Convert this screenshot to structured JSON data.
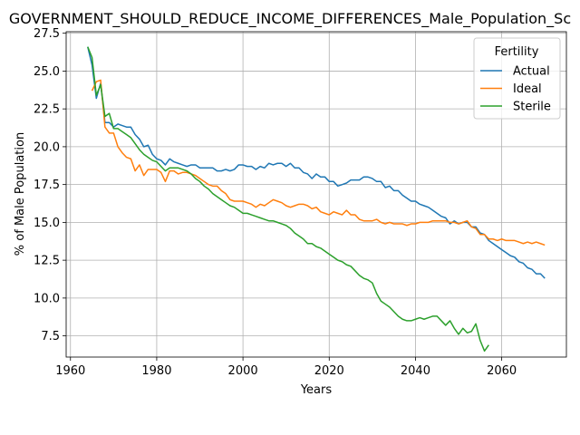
{
  "chart_data": {
    "type": "line",
    "title": "GOVERNMENT_SHOULD_REDUCE_INCOME_DIFFERENCES_Male_Population_Sc",
    "xlabel": "Years",
    "ylabel": "% of Male Population",
    "xlim": [
      1959,
      2075
    ],
    "ylim": [
      6.1,
      27.6
    ],
    "xticks": [
      1960,
      1980,
      2000,
      2020,
      2040,
      2060
    ],
    "yticks": [
      7.5,
      10.0,
      12.5,
      15.0,
      17.5,
      20.0,
      22.5,
      25.0,
      27.5
    ],
    "ytick_labels": [
      "7.5",
      "10.0",
      "12.5",
      "15.0",
      "17.5",
      "20.0",
      "22.5",
      "25.0",
      "27.5"
    ],
    "grid": true,
    "legend_title": "Fertility",
    "legend_position": "top-right",
    "series": [
      {
        "name": "Actual",
        "color": "#1f77b4",
        "points": [
          [
            1964,
            26.6
          ],
          [
            1965,
            25.4
          ],
          [
            1966,
            23.2
          ],
          [
            1967,
            24.2
          ],
          [
            1968,
            21.6
          ],
          [
            1969,
            21.6
          ],
          [
            1970,
            21.3
          ],
          [
            1971,
            21.5
          ],
          [
            1972,
            21.4
          ],
          [
            1973,
            21.3
          ],
          [
            1974,
            21.3
          ],
          [
            1975,
            20.8
          ],
          [
            1976,
            20.5
          ],
          [
            1977,
            20.0
          ],
          [
            1978,
            20.1
          ],
          [
            1979,
            19.5
          ],
          [
            1980,
            19.2
          ],
          [
            1981,
            19.1
          ],
          [
            1982,
            18.8
          ],
          [
            1983,
            19.2
          ],
          [
            1984,
            19.0
          ],
          [
            1985,
            18.9
          ],
          [
            1986,
            18.8
          ],
          [
            1987,
            18.7
          ],
          [
            1988,
            18.8
          ],
          [
            1989,
            18.8
          ],
          [
            1990,
            18.6
          ],
          [
            1991,
            18.6
          ],
          [
            1992,
            18.6
          ],
          [
            1993,
            18.6
          ],
          [
            1994,
            18.4
          ],
          [
            1995,
            18.4
          ],
          [
            1996,
            18.5
          ],
          [
            1997,
            18.4
          ],
          [
            1998,
            18.5
          ],
          [
            1999,
            18.8
          ],
          [
            2000,
            18.8
          ],
          [
            2001,
            18.7
          ],
          [
            2002,
            18.7
          ],
          [
            2003,
            18.5
          ],
          [
            2004,
            18.7
          ],
          [
            2005,
            18.6
          ],
          [
            2006,
            18.9
          ],
          [
            2007,
            18.8
          ],
          [
            2008,
            18.9
          ],
          [
            2009,
            18.9
          ],
          [
            2010,
            18.7
          ],
          [
            2011,
            18.9
          ],
          [
            2012,
            18.6
          ],
          [
            2013,
            18.6
          ],
          [
            2014,
            18.3
          ],
          [
            2015,
            18.2
          ],
          [
            2016,
            17.9
          ],
          [
            2017,
            18.2
          ],
          [
            2018,
            18.0
          ],
          [
            2019,
            18.0
          ],
          [
            2020,
            17.7
          ],
          [
            2021,
            17.7
          ],
          [
            2022,
            17.4
          ],
          [
            2023,
            17.5
          ],
          [
            2024,
            17.6
          ],
          [
            2025,
            17.8
          ],
          [
            2026,
            17.8
          ],
          [
            2027,
            17.8
          ],
          [
            2028,
            18.0
          ],
          [
            2029,
            18.0
          ],
          [
            2030,
            17.9
          ],
          [
            2031,
            17.7
          ],
          [
            2032,
            17.7
          ],
          [
            2033,
            17.3
          ],
          [
            2034,
            17.4
          ],
          [
            2035,
            17.1
          ],
          [
            2036,
            17.1
          ],
          [
            2037,
            16.8
          ],
          [
            2038,
            16.6
          ],
          [
            2039,
            16.4
          ],
          [
            2040,
            16.4
          ],
          [
            2041,
            16.2
          ],
          [
            2042,
            16.1
          ],
          [
            2043,
            16.0
          ],
          [
            2044,
            15.8
          ],
          [
            2045,
            15.6
          ],
          [
            2046,
            15.4
          ],
          [
            2047,
            15.3
          ],
          [
            2048,
            14.9
          ],
          [
            2049,
            15.1
          ],
          [
            2050,
            14.9
          ],
          [
            2051,
            15.0
          ],
          [
            2052,
            15.0
          ],
          [
            2053,
            14.7
          ],
          [
            2054,
            14.7
          ],
          [
            2055,
            14.3
          ],
          [
            2056,
            14.2
          ],
          [
            2057,
            13.8
          ],
          [
            2058,
            13.6
          ],
          [
            2059,
            13.4
          ],
          [
            2060,
            13.2
          ],
          [
            2061,
            13.0
          ],
          [
            2062,
            12.8
          ],
          [
            2063,
            12.7
          ],
          [
            2064,
            12.4
          ],
          [
            2065,
            12.3
          ],
          [
            2066,
            12.0
          ],
          [
            2067,
            11.9
          ],
          [
            2068,
            11.6
          ],
          [
            2069,
            11.6
          ],
          [
            2070,
            11.3
          ]
        ]
      },
      {
        "name": "Ideal",
        "color": "#ff7f0e",
        "points": [
          [
            1965,
            23.7
          ],
          [
            1966,
            24.3
          ],
          [
            1967,
            24.4
          ],
          [
            1968,
            21.3
          ],
          [
            1969,
            20.9
          ],
          [
            1970,
            20.9
          ],
          [
            1971,
            20.0
          ],
          [
            1972,
            19.6
          ],
          [
            1973,
            19.3
          ],
          [
            1974,
            19.2
          ],
          [
            1975,
            18.4
          ],
          [
            1976,
            18.8
          ],
          [
            1977,
            18.1
          ],
          [
            1978,
            18.5
          ],
          [
            1979,
            18.5
          ],
          [
            1980,
            18.5
          ],
          [
            1981,
            18.3
          ],
          [
            1982,
            17.7
          ],
          [
            1983,
            18.4
          ],
          [
            1984,
            18.4
          ],
          [
            1985,
            18.2
          ],
          [
            1986,
            18.3
          ],
          [
            1987,
            18.3
          ],
          [
            1988,
            18.2
          ],
          [
            1989,
            18.1
          ],
          [
            1990,
            17.9
          ],
          [
            1991,
            17.7
          ],
          [
            1992,
            17.5
          ],
          [
            1993,
            17.4
          ],
          [
            1994,
            17.4
          ],
          [
            1995,
            17.1
          ],
          [
            1996,
            16.9
          ],
          [
            1997,
            16.5
          ],
          [
            1998,
            16.4
          ],
          [
            1999,
            16.4
          ],
          [
            2000,
            16.4
          ],
          [
            2001,
            16.3
          ],
          [
            2002,
            16.2
          ],
          [
            2003,
            16.0
          ],
          [
            2004,
            16.2
          ],
          [
            2005,
            16.1
          ],
          [
            2006,
            16.3
          ],
          [
            2007,
            16.5
          ],
          [
            2008,
            16.4
          ],
          [
            2009,
            16.3
          ],
          [
            2010,
            16.1
          ],
          [
            2011,
            16.0
          ],
          [
            2012,
            16.1
          ],
          [
            2013,
            16.2
          ],
          [
            2014,
            16.2
          ],
          [
            2015,
            16.1
          ],
          [
            2016,
            15.9
          ],
          [
            2017,
            16.0
          ],
          [
            2018,
            15.7
          ],
          [
            2019,
            15.6
          ],
          [
            2020,
            15.5
          ],
          [
            2021,
            15.7
          ],
          [
            2022,
            15.6
          ],
          [
            2023,
            15.5
          ],
          [
            2024,
            15.8
          ],
          [
            2025,
            15.5
          ],
          [
            2026,
            15.5
          ],
          [
            2027,
            15.2
          ],
          [
            2028,
            15.1
          ],
          [
            2029,
            15.1
          ],
          [
            2030,
            15.1
          ],
          [
            2031,
            15.2
          ],
          [
            2032,
            15.0
          ],
          [
            2033,
            14.9
          ],
          [
            2034,
            15.0
          ],
          [
            2035,
            14.9
          ],
          [
            2036,
            14.9
          ],
          [
            2037,
            14.9
          ],
          [
            2038,
            14.8
          ],
          [
            2039,
            14.9
          ],
          [
            2040,
            14.9
          ],
          [
            2041,
            15.0
          ],
          [
            2042,
            15.0
          ],
          [
            2043,
            15.0
          ],
          [
            2044,
            15.1
          ],
          [
            2045,
            15.1
          ],
          [
            2046,
            15.1
          ],
          [
            2047,
            15.1
          ],
          [
            2048,
            15.0
          ],
          [
            2049,
            15.0
          ],
          [
            2050,
            14.9
          ],
          [
            2051,
            15.0
          ],
          [
            2052,
            15.1
          ],
          [
            2053,
            14.7
          ],
          [
            2054,
            14.6
          ],
          [
            2055,
            14.2
          ],
          [
            2056,
            14.2
          ],
          [
            2057,
            13.9
          ],
          [
            2058,
            13.9
          ],
          [
            2059,
            13.8
          ],
          [
            2060,
            13.9
          ],
          [
            2061,
            13.8
          ],
          [
            2062,
            13.8
          ],
          [
            2063,
            13.8
          ],
          [
            2064,
            13.7
          ],
          [
            2065,
            13.6
          ],
          [
            2066,
            13.7
          ],
          [
            2067,
            13.6
          ],
          [
            2068,
            13.7
          ],
          [
            2069,
            13.6
          ],
          [
            2070,
            13.5
          ]
        ]
      },
      {
        "name": "Sterile",
        "color": "#2ca02c",
        "points": [
          [
            1964,
            26.6
          ],
          [
            1965,
            25.9
          ],
          [
            1966,
            23.4
          ],
          [
            1967,
            24.1
          ],
          [
            1968,
            22.0
          ],
          [
            1969,
            22.2
          ],
          [
            1970,
            21.2
          ],
          [
            1971,
            21.2
          ],
          [
            1972,
            21.0
          ],
          [
            1973,
            20.8
          ],
          [
            1974,
            20.6
          ],
          [
            1975,
            20.2
          ],
          [
            1976,
            19.8
          ],
          [
            1977,
            19.5
          ],
          [
            1978,
            19.3
          ],
          [
            1979,
            19.1
          ],
          [
            1980,
            19.0
          ],
          [
            1981,
            18.7
          ],
          [
            1982,
            18.4
          ],
          [
            1983,
            18.6
          ],
          [
            1984,
            18.6
          ],
          [
            1985,
            18.6
          ],
          [
            1986,
            18.5
          ],
          [
            1987,
            18.4
          ],
          [
            1988,
            18.2
          ],
          [
            1989,
            17.9
          ],
          [
            1990,
            17.7
          ],
          [
            1991,
            17.4
          ],
          [
            1992,
            17.2
          ],
          [
            1993,
            16.9
          ],
          [
            1994,
            16.7
          ],
          [
            1995,
            16.5
          ],
          [
            1996,
            16.3
          ],
          [
            1997,
            16.1
          ],
          [
            1998,
            16.0
          ],
          [
            1999,
            15.8
          ],
          [
            2000,
            15.6
          ],
          [
            2001,
            15.6
          ],
          [
            2002,
            15.5
          ],
          [
            2003,
            15.4
          ],
          [
            2004,
            15.3
          ],
          [
            2005,
            15.2
          ],
          [
            2006,
            15.1
          ],
          [
            2007,
            15.1
          ],
          [
            2008,
            15.0
          ],
          [
            2009,
            14.9
          ],
          [
            2010,
            14.8
          ],
          [
            2011,
            14.6
          ],
          [
            2012,
            14.3
          ],
          [
            2013,
            14.1
          ],
          [
            2014,
            13.9
          ],
          [
            2015,
            13.6
          ],
          [
            2016,
            13.6
          ],
          [
            2017,
            13.4
          ],
          [
            2018,
            13.3
          ],
          [
            2019,
            13.1
          ],
          [
            2020,
            12.9
          ],
          [
            2021,
            12.7
          ],
          [
            2022,
            12.5
          ],
          [
            2023,
            12.4
          ],
          [
            2024,
            12.2
          ],
          [
            2025,
            12.1
          ],
          [
            2026,
            11.8
          ],
          [
            2027,
            11.5
          ],
          [
            2028,
            11.3
          ],
          [
            2029,
            11.2
          ],
          [
            2030,
            11.0
          ],
          [
            2031,
            10.3
          ],
          [
            2032,
            9.8
          ],
          [
            2033,
            9.6
          ],
          [
            2034,
            9.4
          ],
          [
            2035,
            9.1
          ],
          [
            2036,
            8.8
          ],
          [
            2037,
            8.6
          ],
          [
            2038,
            8.5
          ],
          [
            2039,
            8.5
          ],
          [
            2040,
            8.6
          ],
          [
            2041,
            8.7
          ],
          [
            2042,
            8.6
          ],
          [
            2043,
            8.7
          ],
          [
            2044,
            8.8
          ],
          [
            2045,
            8.8
          ],
          [
            2046,
            8.5
          ],
          [
            2047,
            8.2
          ],
          [
            2048,
            8.5
          ],
          [
            2049,
            8.0
          ],
          [
            2050,
            7.6
          ],
          [
            2051,
            8.0
          ],
          [
            2052,
            7.7
          ],
          [
            2053,
            7.8
          ],
          [
            2054,
            8.3
          ],
          [
            2055,
            7.2
          ],
          [
            2056,
            6.5
          ],
          [
            2057,
            6.9
          ]
        ]
      }
    ]
  }
}
